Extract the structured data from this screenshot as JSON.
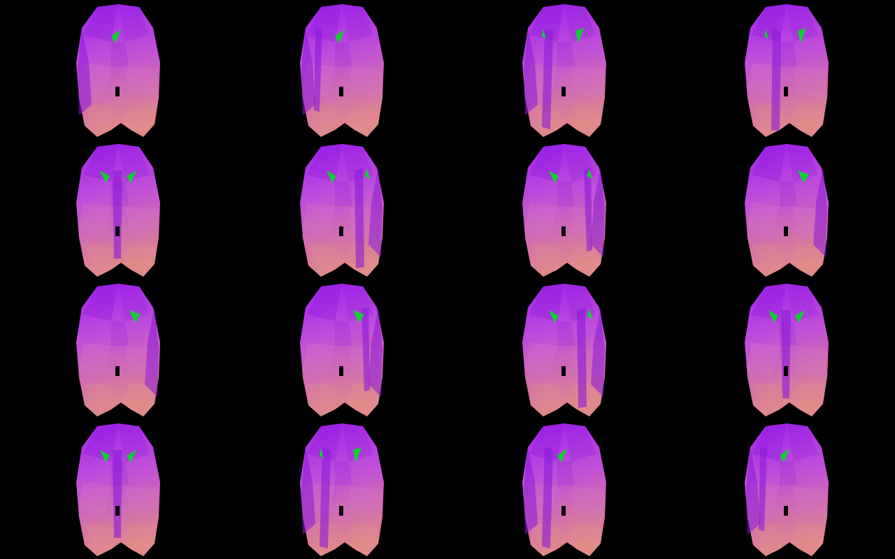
{
  "sprite_sheet": {
    "background_color": "#000000",
    "rows": 4,
    "columns": 4,
    "colors": {
      "body_top": "#a020f0",
      "body_mid": "#c050d8",
      "body_bottom": "#e08a8a",
      "facet_dark": "#8a1ad8",
      "facet_light": "#d878c8",
      "eye": "#10d030"
    },
    "frames": [
      {
        "view": "right-profile",
        "eyes": 1,
        "tusk": "none"
      },
      {
        "view": "right-profile",
        "eyes": 1,
        "tusk": "left-edge"
      },
      {
        "view": "front-right",
        "eyes": 2,
        "tusk": "left"
      },
      {
        "view": "front",
        "eyes": 2,
        "tusk": "left-center"
      },
      {
        "view": "front",
        "eyes": 2,
        "tusk": "center"
      },
      {
        "view": "front-left",
        "eyes": 2,
        "tusk": "right"
      },
      {
        "view": "left-profile",
        "eyes": 2,
        "tusk": "right-edge"
      },
      {
        "view": "left-profile",
        "eyes": 1,
        "tusk": "none"
      },
      {
        "view": "left-profile",
        "eyes": 1,
        "tusk": "none"
      },
      {
        "view": "left-profile",
        "eyes": 1,
        "tusk": "right-edge"
      },
      {
        "view": "front-left",
        "eyes": 2,
        "tusk": "right"
      },
      {
        "view": "front",
        "eyes": 2,
        "tusk": "center"
      },
      {
        "view": "front",
        "eyes": 2,
        "tusk": "center"
      },
      {
        "view": "front-right",
        "eyes": 2,
        "tusk": "left"
      },
      {
        "view": "right-profile",
        "eyes": 1,
        "tusk": "left"
      },
      {
        "view": "right-profile",
        "eyes": 1,
        "tusk": "left-edge"
      }
    ]
  }
}
